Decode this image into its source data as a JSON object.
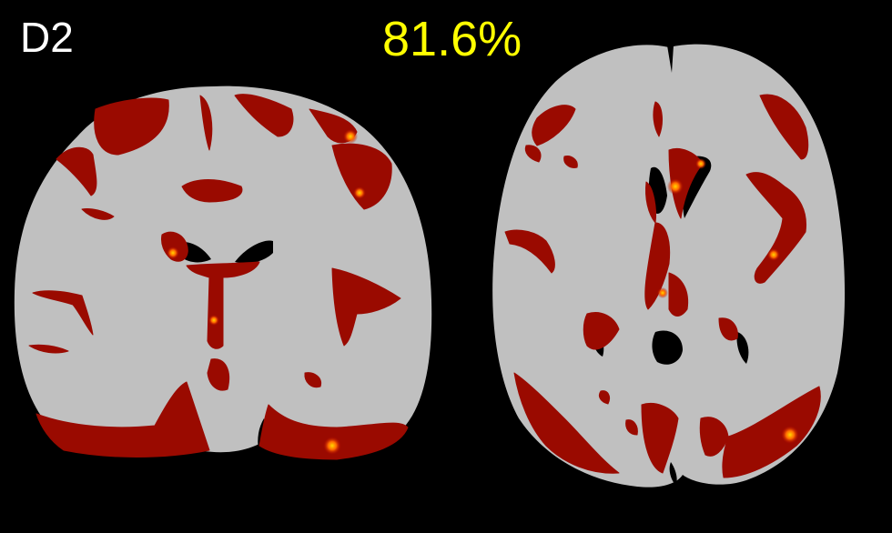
{
  "panel_label": "D2",
  "percentage": "81.6%",
  "colors": {
    "background": "#000000",
    "brain_tissue": "#c0c0c0",
    "overlay_dark": "#8b0000",
    "overlay_mid": "#c01000",
    "overlay_hot": "#ff8c00",
    "overlay_bright": "#ffd700",
    "label_text": "#ffffff",
    "percentage_text": "#ffff00"
  },
  "views": [
    {
      "name": "coronal"
    },
    {
      "name": "axial"
    }
  ]
}
